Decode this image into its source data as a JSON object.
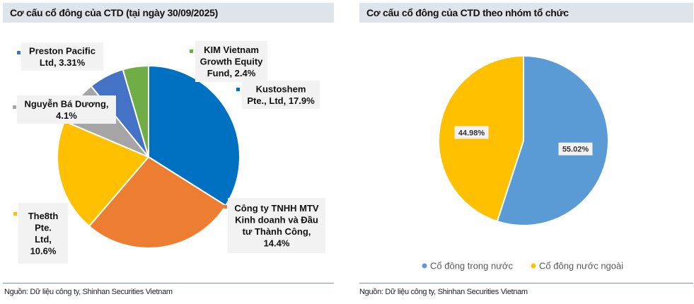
{
  "chart_data": [
    {
      "type": "pie",
      "title": "Cơ cấu cổ đông của CTD (tại ngày 30/09/2025)",
      "source": "Nguồn: Dữ liệu công ty, Shinhan Securities Vietnam",
      "slices": [
        {
          "name": "Kustoshem Pte., Ltd",
          "value": 17.9,
          "color": "#0070c0",
          "label_lines": [
            "Kustoshem",
            "Pte., Ltd, 17.9%"
          ]
        },
        {
          "name": "Công ty TNHH MTV Kinh doanh và Đầu tư Thành Công",
          "value": 14.4,
          "color": "#ed7d31",
          "label_lines": [
            "Công ty TNHH MTV",
            "Kinh doanh và Đầu",
            "tư Thành Công,",
            "14.4%"
          ]
        },
        {
          "name": "The8th Pte. Ltd",
          "value": 10.6,
          "color": "#ffc000",
          "label_lines": [
            "The8th",
            "Pte.",
            "Ltd,",
            "10.6%"
          ]
        },
        {
          "name": "Nguyễn Bá Dương",
          "value": 4.1,
          "color": "#a5a5a5",
          "label_lines": [
            "Nguyễn Bá Dương,",
            "4.1%"
          ]
        },
        {
          "name": "Preston Pacific Ltd",
          "value": 3.31,
          "color": "#4472c4",
          "label_lines": [
            "Preston Pacific",
            "Ltd, 3.31%"
          ]
        },
        {
          "name": "KIM Vietnam Growth Equity Fund",
          "value": 2.4,
          "color": "#70ad47",
          "label_lines": [
            "KIM Vietnam",
            "Growth Equity",
            "Fund, 2.4%"
          ]
        }
      ]
    },
    {
      "type": "pie",
      "title": "Cơ cấu cổ đông của CTD theo nhóm tổ chức",
      "source": "Nguồn: Dữ liệu công ty, Shinhan Securities Vietnam",
      "slices": [
        {
          "name": "Cổ đông trong nước",
          "value": 55.02,
          "label": "55.02%",
          "color": "#5b9bd5"
        },
        {
          "name": "Cổ đông nước ngoài",
          "value": 44.98,
          "label": "44.98%",
          "color": "#ffc000"
        }
      ],
      "legend": [
        "Cổ đông trong nước",
        "Cổ đông nước ngoài"
      ],
      "legend_position": "bottom"
    }
  ]
}
